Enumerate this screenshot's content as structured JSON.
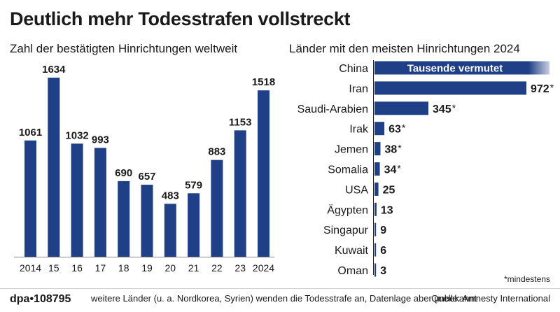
{
  "title": "Deutlich mehr Todesstrafen vollstreckt",
  "colors": {
    "bar": "#1f3f86",
    "text": "#1a1a1a"
  },
  "chart_data": [
    {
      "type": "bar",
      "title": "Zahl der bestätigten Hinrichtungen weltweit",
      "categories": [
        "2014",
        "15",
        "16",
        "17",
        "18",
        "19",
        "20",
        "21",
        "22",
        "23",
        "2024"
      ],
      "values": [
        1061,
        1634,
        1032,
        993,
        690,
        657,
        483,
        579,
        883,
        1153,
        1518
      ],
      "xlabel": "",
      "ylabel": "",
      "ylim": [
        0,
        1700
      ]
    },
    {
      "type": "bar",
      "orientation": "horizontal",
      "title": "Länder mit den meisten Hinrichtungen 2024",
      "categories": [
        "China",
        "Iran",
        "Saudi-Arabien",
        "Irak",
        "Jemen",
        "Somalia",
        "USA",
        "Ägypten",
        "Singapur",
        "Kuwait",
        "Oman"
      ],
      "values": [
        null,
        972,
        345,
        63,
        38,
        34,
        25,
        13,
        9,
        6,
        3
      ],
      "labels": [
        "Tausende vermutet",
        "972",
        "345",
        "63",
        "38",
        "34",
        "25",
        "13",
        "9",
        "6",
        "3"
      ],
      "minimum_marked": [
        false,
        true,
        true,
        true,
        true,
        true,
        false,
        false,
        false,
        false,
        false
      ],
      "xlim": [
        0,
        972
      ]
    }
  ],
  "asterisk": "*",
  "footnote": "*mindestens",
  "footer": {
    "id": "dpa•108795",
    "note": "weitere Länder (u. a. Nordkorea, Syrien) wenden die Todesstrafe an, Datenlage aber unbekannt",
    "source": "Quelle: Amnesty International"
  }
}
